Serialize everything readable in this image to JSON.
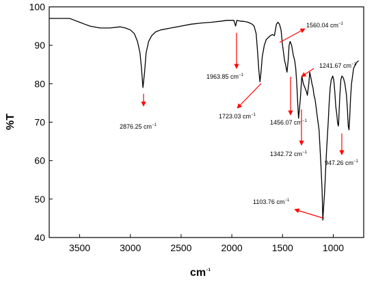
{
  "chart_data": {
    "type": "line",
    "title": "",
    "xlabel": "cm",
    "xlabel_superscript": "−1",
    "ylabel": "%T",
    "xlim": [
      3800,
      700
    ],
    "ylim": [
      40,
      100
    ],
    "x_ticks": [
      3500,
      3000,
      2500,
      2000,
      1500,
      1000
    ],
    "y_ticks": [
      40,
      50,
      60,
      70,
      80,
      90,
      100
    ],
    "series": [
      {
        "color": "#000000",
        "x": [
          3800,
          3700,
          3600,
          3550,
          3500,
          3450,
          3400,
          3300,
          3200,
          3100,
          3050,
          3000,
          2960,
          2930,
          2905,
          2890,
          2876,
          2860,
          2845,
          2820,
          2790,
          2750,
          2700,
          2600,
          2500,
          2400,
          2300,
          2200,
          2100,
          2050,
          2000,
          1980,
          1963,
          1950,
          1920,
          1880,
          1840,
          1800,
          1780,
          1760,
          1745,
          1735,
          1723,
          1712,
          1700,
          1680,
          1660,
          1640,
          1620,
          1600,
          1580,
          1560,
          1545,
          1530,
          1515,
          1500,
          1490,
          1480,
          1470,
          1456,
          1445,
          1435,
          1425,
          1410,
          1395,
          1380,
          1370,
          1360,
          1350,
          1342,
          1335,
          1325,
          1310,
          1295,
          1280,
          1265,
          1255,
          1241,
          1232,
          1220,
          1210,
          1200,
          1190,
          1180,
          1170,
          1160,
          1150,
          1140,
          1130,
          1120,
          1110,
          1103,
          1095,
          1085,
          1075,
          1065,
          1050,
          1040,
          1030,
          1020,
          1005,
          995,
          985,
          975,
          965,
          958,
          951,
          947,
          942,
          935,
          925,
          915,
          900,
          885,
          870,
          860,
          852,
          845,
          838,
          830,
          820,
          810,
          800,
          790,
          780,
          770,
          760,
          750
        ],
        "y": [
          97,
          97,
          97,
          96.5,
          96,
          95.5,
          95,
          94.5,
          94.5,
          94.8,
          94.5,
          94,
          93,
          91,
          88,
          84,
          79,
          83,
          88,
          91,
          92.5,
          93.5,
          94,
          94.5,
          95,
          95.5,
          95.8,
          96,
          96.3,
          96.5,
          96.5,
          96.5,
          95,
          96.5,
          96.3,
          96.2,
          96,
          95.5,
          95,
          93,
          88,
          84,
          80.5,
          83,
          87,
          90,
          91.5,
          92,
          92.5,
          92.8,
          92.5,
          95.5,
          96,
          95.5,
          94,
          90,
          88,
          86,
          85,
          83,
          86,
          90,
          91,
          90,
          87.5,
          86,
          84,
          80,
          75,
          71,
          73,
          76,
          82,
          80,
          79,
          78,
          77,
          80,
          83,
          81.5,
          80,
          79,
          77,
          76,
          74,
          72,
          70,
          68,
          63,
          58,
          52,
          44.5,
          48,
          52,
          58,
          63,
          70,
          75,
          79,
          81,
          82,
          81,
          78,
          74,
          72,
          70,
          69,
          69.5,
          73,
          77,
          81,
          82,
          81.5,
          80,
          77,
          73,
          69,
          68,
          71,
          76,
          80,
          82,
          84,
          84.5,
          85,
          85.5,
          85.8,
          86
        ]
      }
    ],
    "annotations": [
      {
        "label": "2876.25 cm",
        "x": 2876.25,
        "y": 79
      },
      {
        "label": "1963.85 cm",
        "x": 1963.85,
        "y": 95
      },
      {
        "label": "1723.03 cm",
        "x": 1723.03,
        "y": 80.5
      },
      {
        "label": "1560.04 cm",
        "x": 1560.04,
        "y": 94
      },
      {
        "label": "1456.07 cm",
        "x": 1456.07,
        "y": 85
      },
      {
        "label": "1342.72 cm",
        "x": 1342.72,
        "y": 71
      },
      {
        "label": "1241.67 cm",
        "x": 1241.67,
        "y": 77
      },
      {
        "label": "1103.76 cm",
        "x": 1103.76,
        "y": 44.5
      },
      {
        "label": "947.26 cm",
        "x": 947.26,
        "y": 69
      }
    ],
    "annotation_superscript": "−1",
    "annotation_color": "#ff0000"
  }
}
